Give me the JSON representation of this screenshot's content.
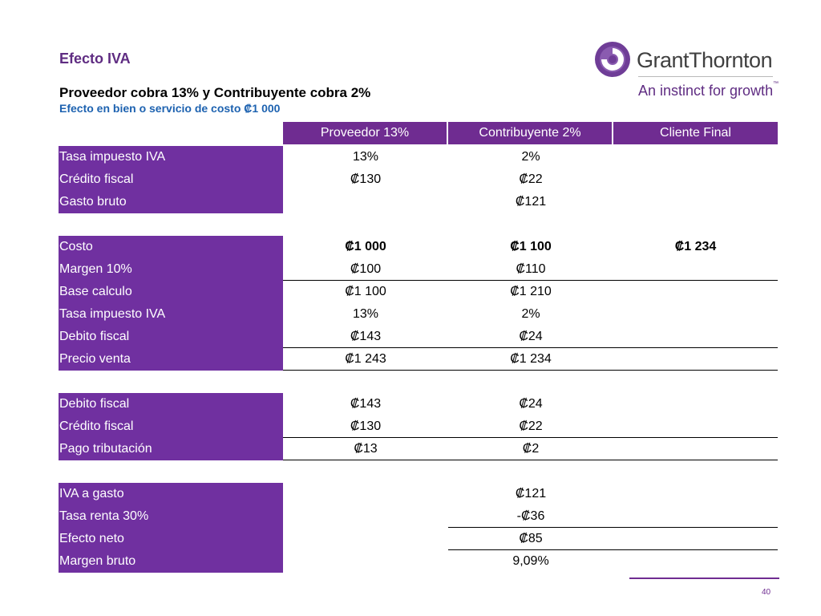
{
  "title": "Efecto IVA",
  "subtitle": "Proveedor cobra 13% y Contribuyente cobra 2%",
  "subtitle2": "Efecto en bien o servicio de costo ₡1 000",
  "logo": {
    "name": "GrantThornton",
    "tagline": "An instinct for growth",
    "tm": "™"
  },
  "colors": {
    "purple": "#7030a0",
    "blue": "#1d62b0"
  },
  "headers": [
    "Proveedor 13%",
    "Contribuyente 2%",
    "Cliente Final"
  ],
  "rows": [
    {
      "label": "Tasa impuesto IVA",
      "c1": "13%",
      "c2": "2%",
      "c3": ""
    },
    {
      "label": "Crédito fiscal",
      "c1": "₡130",
      "c2": "₡22",
      "c3": ""
    },
    {
      "label": "Gasto bruto",
      "c1": "",
      "c2": "₡121",
      "c3": ""
    },
    {
      "label": "Costo",
      "c1": "₡1 000",
      "c2": "₡1 100",
      "c3": "₡1 234"
    },
    {
      "label": "Margen 10%",
      "c1": "₡100",
      "c2": "₡110",
      "c3": ""
    },
    {
      "label": "Base calculo",
      "c1": "₡1 100",
      "c2": "₡1 210",
      "c3": ""
    },
    {
      "label": "Tasa impuesto IVA",
      "c1": "13%",
      "c2": "2%",
      "c3": ""
    },
    {
      "label": "Debito fiscal",
      "c1": "₡143",
      "c2": "₡24",
      "c3": ""
    },
    {
      "label": "Precio venta",
      "c1": "₡1 243",
      "c2": "₡1 234",
      "c3": ""
    },
    {
      "label": "Debito fiscal",
      "c1": "₡143",
      "c2": "₡24",
      "c3": ""
    },
    {
      "label": "Crédito fiscal",
      "c1": "₡130",
      "c2": "₡22",
      "c3": ""
    },
    {
      "label": "Pago tributación",
      "c1": "₡13",
      "c2": "₡2",
      "c3": ""
    },
    {
      "label": "IVA a gasto",
      "c1": "",
      "c2": "₡121",
      "c3": ""
    },
    {
      "label": "Tasa renta 30%",
      "c1": "",
      "c2": "-₡36",
      "c3": ""
    },
    {
      "label": "Efecto neto",
      "c1": "",
      "c2": "₡85",
      "c3": ""
    },
    {
      "label": "Margen bruto",
      "c1": "",
      "c2": "9,09%",
      "c3": ""
    }
  ],
  "page_number": "40"
}
